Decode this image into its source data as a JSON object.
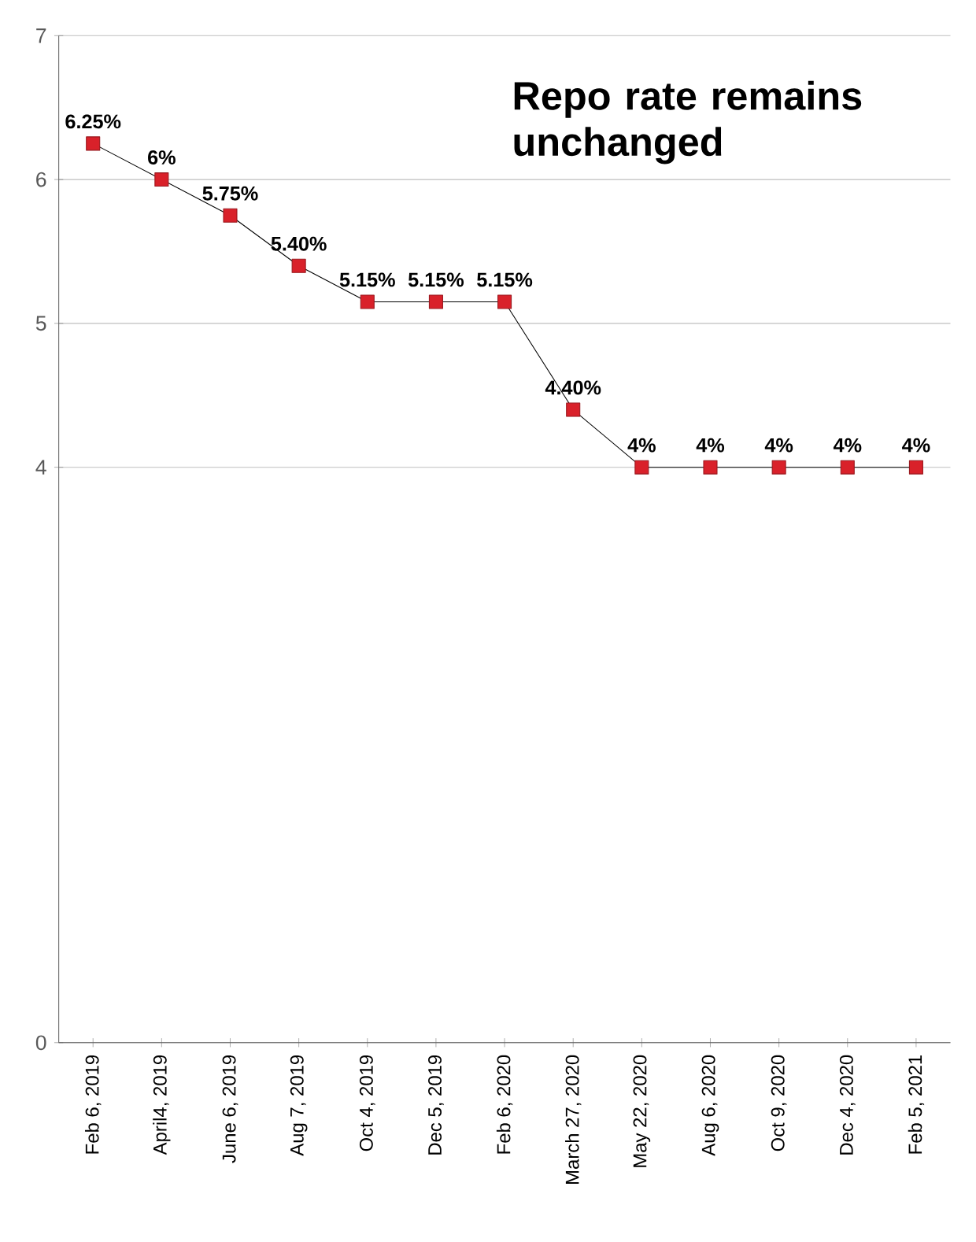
{
  "chart_data": {
    "type": "line",
    "title": "Repo rate remains unchanged",
    "categories": [
      "Feb 6, 2019",
      "April4, 2019",
      "June 6, 2019",
      "Aug 7, 2019",
      "Oct 4, 2019",
      "Dec 5, 2019",
      "Feb 6, 2020",
      "March 27, 2020",
      "May 22, 2020",
      "Aug 6, 2020",
      "Oct 9, 2020",
      "Dec 4, 2020",
      "Feb 5, 2021"
    ],
    "series": [
      {
        "color": "#d9212a",
        "values": [
          6.25,
          6,
          5.75,
          5.4,
          5.15,
          5.15,
          5.15,
          4.4,
          4,
          4,
          4,
          4,
          4
        ],
        "value_labels": [
          "6.25%",
          "6%",
          "5.75%",
          "5.40%",
          "5.15%",
          "5.15%",
          "5.15%",
          "4.40%",
          "4%",
          "4%",
          "4%",
          "4%",
          "4%"
        ]
      }
    ],
    "ylim": [
      0,
      7
    ],
    "yticks": [
      0,
      4,
      5,
      6,
      7
    ],
    "grid": "y",
    "marker": "square",
    "line_style": "solid"
  }
}
